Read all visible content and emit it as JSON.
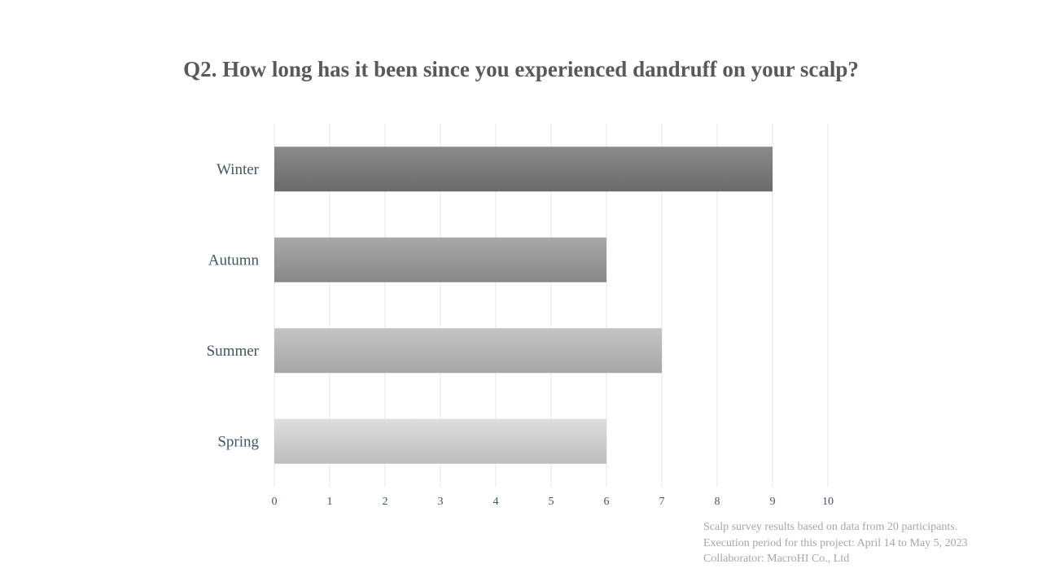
{
  "chart_data": {
    "type": "bar",
    "orientation": "horizontal",
    "title": "Q2. How long has it been since you experienced dandruff  on your scalp?",
    "categories": [
      "Winter",
      "Autumn",
      "Summer",
      "Spring"
    ],
    "values": [
      9,
      6,
      7,
      6
    ],
    "bar_colors": [
      [
        "#8a8a8a",
        "#6b6b6b"
      ],
      [
        "#a8a8a8",
        "#888888"
      ],
      [
        "#c4c4c4",
        "#a6a6a6"
      ],
      [
        "#dedede",
        "#bdbdbd"
      ]
    ],
    "xlim": [
      0,
      10
    ],
    "x_ticks": [
      "0",
      "1",
      "2",
      "3",
      "4",
      "5",
      "6",
      "7",
      "8",
      "9",
      "10"
    ],
    "grid": true,
    "legend": "none",
    "xlabel": "",
    "ylabel": ""
  },
  "footnote": {
    "line1": "Scalp survey results based on data from 20 participants.",
    "line2": "Execution period for this project: April 14 to May 5, 2023",
    "line3": "Collaborator: MacroHI Co., Ltd"
  },
  "colors": {
    "title": "#595959",
    "axis_label": "#44546a",
    "gridline": "#e6e6e6",
    "footnote": "#a6a6a6"
  }
}
